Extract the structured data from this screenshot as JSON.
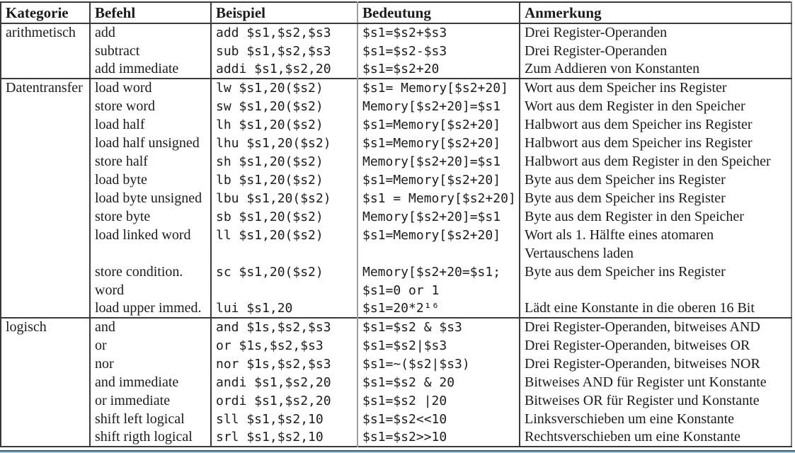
{
  "table": {
    "columns": [
      {
        "label": "Kategorie"
      },
      {
        "label": "Befehl"
      },
      {
        "label": "Beispiel"
      },
      {
        "label": "Bedeutung"
      },
      {
        "label": "Anmerkung"
      }
    ],
    "sections": [
      {
        "rows": [
          {
            "kategorie": "arithmetisch",
            "befehl": "add",
            "beispiel": "add $s1,$s2,$s3",
            "bedeutung": "$s1=$s2+$s3",
            "anmerkung": "Drei Register-Operanden"
          },
          {
            "kategorie": "",
            "befehl": "subtract",
            "beispiel": "sub $s1,$s2,$s3",
            "bedeutung": "$s1=$s2-$s3",
            "anmerkung": "Drei Register-Operanden"
          },
          {
            "kategorie": "",
            "befehl": "add immediate",
            "beispiel": "addi $s1,$s2,20",
            "bedeutung": "$s1=$s2+20",
            "anmerkung": "Zum Addieren von Konstanten"
          }
        ]
      },
      {
        "rows": [
          {
            "kategorie": "Datentransfer",
            "befehl": "load word",
            "beispiel": "lw $s1,20($s2)",
            "bedeutung": "$s1= Memory[$s2+20]",
            "anmerkung": "Wort aus dem Speicher ins Register"
          },
          {
            "kategorie": "",
            "befehl": "store word",
            "beispiel": "sw $s1,20($s2)",
            "bedeutung": "Memory[$s2+20]=$s1",
            "anmerkung": "Wort aus dem Register in den Speicher"
          },
          {
            "kategorie": "",
            "befehl": "load half",
            "beispiel": "lh $s1,20($s2)",
            "bedeutung": "$s1=Memory[$s2+20]",
            "anmerkung": "Halbwort aus dem Speicher ins Register"
          },
          {
            "kategorie": "",
            "befehl": "load half unsigned",
            "beispiel": "lhu $s1,20($s2)",
            "bedeutung": "$s1=Memory[$s2+20]",
            "anmerkung": "Halbwort aus dem Speicher ins Register"
          },
          {
            "kategorie": "",
            "befehl": "store half",
            "beispiel": "sh $s1,20($s2)",
            "bedeutung": "Memory[$s2+20]=$s1",
            "anmerkung": "Halbwort aus dem Register in den Speicher"
          },
          {
            "kategorie": "",
            "befehl": "load byte",
            "beispiel": "lb $s1,20($s2)",
            "bedeutung": "$s1=Memory[$s2+20]",
            "anmerkung": "Byte aus dem Speicher ins Register"
          },
          {
            "kategorie": "",
            "befehl": "load byte unsigned",
            "beispiel": "lbu $s1,20($s2)",
            "bedeutung": "$s1 = Memory[$s2+20]",
            "anmerkung": "Byte aus dem Speicher ins Register"
          },
          {
            "kategorie": "",
            "befehl": "store byte",
            "beispiel": "sb $s1,20($s2)",
            "bedeutung": "Memory[$s2+20]=$s1",
            "anmerkung": "Byte aus dem Register in den Speicher"
          },
          {
            "kategorie": "",
            "befehl": "load linked word",
            "beispiel": "ll $s1,20($s2)",
            "bedeutung": "$s1=Memory[$s2+20]",
            "anmerkung": "Wort als 1. Hälfte eines atomaren"
          },
          {
            "kategorie": "",
            "befehl": "",
            "beispiel": "",
            "bedeutung": "",
            "anmerkung": "Vertauschens laden"
          },
          {
            "kategorie": "",
            "befehl": "store condition.",
            "beispiel": "sc $s1,20($s2)",
            "bedeutung": "Memory[$s2+20=$s1;",
            "anmerkung": "Byte aus dem Speicher ins Register"
          },
          {
            "kategorie": "",
            "befehl": "word",
            "beispiel": "",
            "bedeutung": "$s1=0 or 1",
            "anmerkung": ""
          },
          {
            "kategorie": "",
            "befehl": "load upper immed.",
            "beispiel": "lui $s1,20",
            "bedeutung": "$s1=20*2¹⁶",
            "anmerkung": "Lädt eine Konstante in die oberen 16 Bit"
          }
        ]
      },
      {
        "rows": [
          {
            "kategorie": "logisch",
            "befehl": "and",
            "beispiel": "and $1s,$s2,$s3",
            "bedeutung": "$s1=$s2 & $s3",
            "anmerkung": "Drei Register-Operanden, bitweises AND"
          },
          {
            "kategorie": "",
            "befehl": "or",
            "beispiel": "or $1s,$s2,$s3",
            "bedeutung": "$s1=$s2|$s3",
            "anmerkung": "Drei Register-Operanden, bitweises OR"
          },
          {
            "kategorie": "",
            "befehl": "nor",
            "beispiel": "nor $1s,$s2,$s3",
            "bedeutung": "$s1=~($s2|$s3)",
            "anmerkung": "Drei Register-Operanden, bitweises NOR"
          },
          {
            "kategorie": "",
            "befehl": "and immediate",
            "beispiel": "andi $s1,$s2,20",
            "bedeutung": "$s1=$s2 & 20",
            "anmerkung": "Bitweises AND für Register unt Konstante"
          },
          {
            "kategorie": "",
            "befehl": "or immediate",
            "beispiel": "ordi $s1,$s2,20",
            "bedeutung": "$s1=$s2 |20",
            "anmerkung": "Bitweises OR für Register und Konstante"
          },
          {
            "kategorie": "",
            "befehl": "shift left logical",
            "beispiel": "sll $s1,$s2,10",
            "bedeutung": "$s1=$s2<<10",
            "anmerkung": "Linksverschieben um eine Konstante"
          },
          {
            "kategorie": "",
            "befehl": "shift rigth logical",
            "beispiel": "srl $s1,$s2,10",
            "bedeutung": "$s1=$s2>>10",
            "anmerkung": "Rechtsverschieben um eine Konstante"
          }
        ]
      }
    ]
  },
  "colors": {
    "border_dark": "#3a3a3e",
    "border_gray": "#9b9ea3",
    "bottom_edge_navy": "#3d5c6e",
    "bottom_edge_lightblue": "#a5cadd",
    "text": "#1b1b1e",
    "background": "#ffffff"
  }
}
